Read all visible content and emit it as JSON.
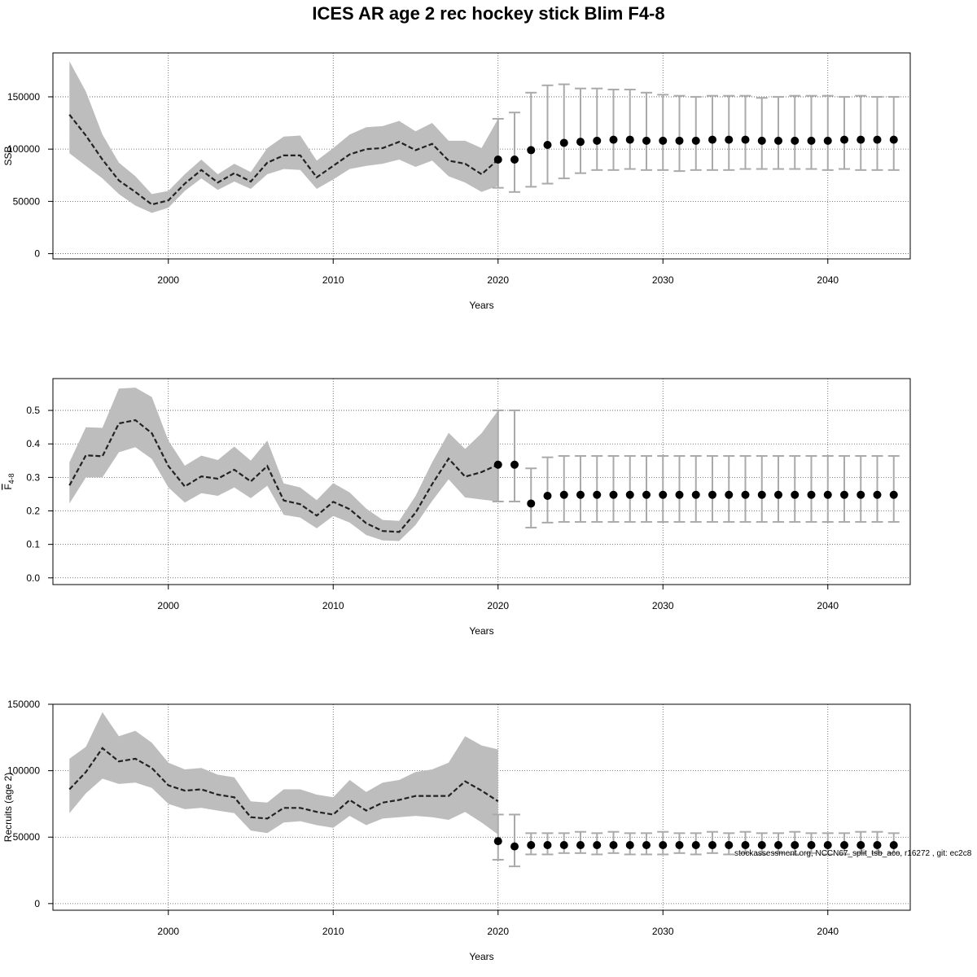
{
  "title": "ICES AR age 2 rec hockey stick Blim F4-8",
  "footnote": "stockassessment.org, NCCN67_split_tsb_aco, r16272 , git: ec2c8",
  "chart_data": [
    {
      "type": "line",
      "ylabel": "SSB",
      "xlabel": "Years",
      "xlim": [
        1993,
        2045
      ],
      "ylim": [
        -5000,
        192000
      ],
      "xticks": [
        2000,
        2010,
        2020,
        2030,
        2040
      ],
      "yticks": [
        0,
        50000,
        100000,
        150000
      ],
      "grid": true,
      "history": {
        "x": [
          1994,
          1995,
          1996,
          1997,
          1998,
          1999,
          2000,
          2001,
          2002,
          2003,
          2004,
          2005,
          2006,
          2007,
          2008,
          2009,
          2010,
          2011,
          2012,
          2013,
          2014,
          2015,
          2016,
          2017,
          2018,
          2019,
          2020
        ],
        "y": [
          133000,
          113000,
          90000,
          70000,
          59000,
          47000,
          51000,
          67000,
          80000,
          68000,
          77000,
          69000,
          87000,
          94000,
          94000,
          73000,
          84000,
          95000,
          100000,
          101000,
          107000,
          99000,
          105000,
          89000,
          86000,
          76000,
          90000
        ],
        "low": [
          96000,
          84000,
          72000,
          57000,
          46000,
          39000,
          44000,
          60000,
          72000,
          61000,
          69000,
          62000,
          76000,
          81000,
          80000,
          62000,
          71000,
          81000,
          84000,
          86000,
          90000,
          83000,
          89000,
          74000,
          68000,
          59000,
          65000
        ],
        "high": [
          184000,
          155000,
          114000,
          87000,
          74000,
          57000,
          60000,
          76000,
          90000,
          76000,
          86000,
          78000,
          101000,
          112000,
          113000,
          89000,
          101000,
          114000,
          121000,
          122000,
          127000,
          117000,
          125000,
          108000,
          108000,
          101000,
          129000
        ]
      },
      "forecast": {
        "x": [
          2020,
          2021,
          2022,
          2023,
          2024,
          2025,
          2026,
          2027,
          2028,
          2029,
          2030,
          2031,
          2032,
          2033,
          2034,
          2035,
          2036,
          2037,
          2038,
          2039,
          2040,
          2041,
          2042,
          2043,
          2044
        ],
        "y": [
          90000,
          90000,
          99000,
          104000,
          106000,
          107000,
          108000,
          109000,
          109000,
          108000,
          108000,
          108000,
          108000,
          109000,
          109000,
          109000,
          108000,
          108000,
          108000,
          108000,
          108000,
          109000,
          109000,
          109000,
          109000
        ],
        "low": [
          63000,
          59000,
          64000,
          67000,
          72000,
          77000,
          80000,
          80000,
          81000,
          80000,
          80000,
          79000,
          80000,
          80000,
          80000,
          81000,
          81000,
          81000,
          81000,
          81000,
          80000,
          81000,
          80000,
          80000,
          80000
        ],
        "high": [
          129000,
          135000,
          154000,
          161000,
          162000,
          158000,
          158000,
          157000,
          157000,
          154000,
          152000,
          151000,
          150000,
          151000,
          151000,
          151000,
          149000,
          150000,
          151000,
          151000,
          151000,
          150000,
          151000,
          150000,
          150000
        ]
      }
    },
    {
      "type": "line",
      "ylabel": "F",
      "ylabel_sub": "4-8",
      "xlabel": "Years",
      "xlim": [
        1993,
        2045
      ],
      "ylim": [
        -0.02,
        0.595
      ],
      "xticks": [
        2000,
        2010,
        2020,
        2030,
        2040
      ],
      "yticks": [
        0.0,
        0.1,
        0.2,
        0.3,
        0.4,
        0.5
      ],
      "ytick_labels": [
        "0.0",
        "0.1",
        "0.2",
        "0.3",
        "0.4",
        "0.5"
      ],
      "grid": true,
      "history": {
        "x": [
          1994,
          1995,
          1996,
          1997,
          1998,
          1999,
          2000,
          2001,
          2002,
          2003,
          2004,
          2005,
          2006,
          2007,
          2008,
          2009,
          2010,
          2011,
          2012,
          2013,
          2014,
          2015,
          2016,
          2017,
          2018,
          2019,
          2020
        ],
        "y": [
          0.276,
          0.366,
          0.363,
          0.461,
          0.471,
          0.432,
          0.334,
          0.273,
          0.303,
          0.296,
          0.323,
          0.288,
          0.334,
          0.231,
          0.22,
          0.186,
          0.227,
          0.205,
          0.163,
          0.14,
          0.137,
          0.195,
          0.28,
          0.356,
          0.302,
          0.316,
          0.338
        ],
        "low": [
          0.222,
          0.3,
          0.3,
          0.375,
          0.39,
          0.355,
          0.27,
          0.225,
          0.253,
          0.245,
          0.27,
          0.238,
          0.275,
          0.188,
          0.18,
          0.148,
          0.185,
          0.165,
          0.128,
          0.112,
          0.11,
          0.158,
          0.23,
          0.294,
          0.24,
          0.234,
          0.228
        ],
        "high": [
          0.345,
          0.45,
          0.448,
          0.565,
          0.568,
          0.54,
          0.41,
          0.335,
          0.365,
          0.352,
          0.392,
          0.35,
          0.41,
          0.282,
          0.27,
          0.232,
          0.283,
          0.255,
          0.207,
          0.173,
          0.17,
          0.245,
          0.345,
          0.433,
          0.385,
          0.432,
          0.5
        ]
      },
      "forecast": {
        "x": [
          2020,
          2021,
          2022,
          2023,
          2024,
          2025,
          2026,
          2027,
          2028,
          2029,
          2030,
          2031,
          2032,
          2033,
          2034,
          2035,
          2036,
          2037,
          2038,
          2039,
          2040,
          2041,
          2042,
          2043,
          2044
        ],
        "y": [
          0.338,
          0.338,
          0.222,
          0.245,
          0.248,
          0.248,
          0.248,
          0.248,
          0.248,
          0.248,
          0.248,
          0.248,
          0.248,
          0.248,
          0.248,
          0.248,
          0.248,
          0.248,
          0.248,
          0.248,
          0.248,
          0.248,
          0.248,
          0.248,
          0.248
        ],
        "low": [
          0.228,
          0.228,
          0.15,
          0.165,
          0.167,
          0.167,
          0.167,
          0.167,
          0.167,
          0.167,
          0.167,
          0.167,
          0.167,
          0.167,
          0.167,
          0.167,
          0.167,
          0.167,
          0.167,
          0.167,
          0.167,
          0.167,
          0.167,
          0.167,
          0.167
        ],
        "high": [
          0.5,
          0.5,
          0.327,
          0.36,
          0.364,
          0.364,
          0.364,
          0.364,
          0.364,
          0.364,
          0.364,
          0.364,
          0.364,
          0.364,
          0.364,
          0.364,
          0.364,
          0.364,
          0.364,
          0.364,
          0.364,
          0.364,
          0.364,
          0.364,
          0.364
        ]
      }
    },
    {
      "type": "line",
      "ylabel": "Recruits (age 2)",
      "xlabel": "Years",
      "xlim": [
        1993,
        2045
      ],
      "ylim": [
        -5000,
        150000
      ],
      "xticks": [
        2000,
        2010,
        2020,
        2030,
        2040
      ],
      "yticks": [
        0,
        50000,
        100000,
        150000
      ],
      "grid": true,
      "history": {
        "x": [
          1994,
          1995,
          1996,
          1997,
          1998,
          1999,
          2000,
          2001,
          2002,
          2003,
          2004,
          2005,
          2006,
          2007,
          2008,
          2009,
          2010,
          2011,
          2012,
          2013,
          2014,
          2015,
          2016,
          2017,
          2018,
          2019,
          2020
        ],
        "y": [
          86000,
          99000,
          117000,
          107000,
          109000,
          102000,
          89000,
          85000,
          86000,
          82000,
          80000,
          65000,
          64000,
          72000,
          72000,
          69000,
          67000,
          78000,
          70000,
          76000,
          78000,
          81000,
          81000,
          81000,
          92000,
          85000,
          77000
        ],
        "low": [
          68000,
          83000,
          94000,
          90000,
          91000,
          87000,
          75000,
          71000,
          72000,
          70000,
          68000,
          55000,
          53000,
          61000,
          62000,
          59000,
          57000,
          66000,
          59000,
          64000,
          65000,
          66000,
          65000,
          63000,
          69000,
          61000,
          52000
        ],
        "high": [
          109000,
          118000,
          144000,
          126000,
          130000,
          121000,
          106000,
          101000,
          102000,
          97000,
          95000,
          77000,
          76000,
          86000,
          86000,
          82000,
          80000,
          93000,
          84000,
          91000,
          93000,
          99000,
          101000,
          106000,
          126000,
          119000,
          116000
        ]
      },
      "forecast": {
        "x": [
          2020,
          2021,
          2022,
          2023,
          2024,
          2025,
          2026,
          2027,
          2028,
          2029,
          2030,
          2031,
          2032,
          2033,
          2034,
          2035,
          2036,
          2037,
          2038,
          2039,
          2040,
          2041,
          2042,
          2043,
          2044
        ],
        "y": [
          47000,
          43000,
          44000,
          44000,
          44000,
          44000,
          44000,
          44000,
          44000,
          44000,
          44000,
          44000,
          44000,
          44000,
          44000,
          44000,
          44000,
          44000,
          44000,
          44000,
          44000,
          44000,
          44000,
          44000,
          44000
        ],
        "low": [
          33000,
          28000,
          37000,
          37000,
          38000,
          38000,
          37000,
          38000,
          37000,
          37000,
          37000,
          38000,
          37000,
          38000,
          37000,
          38000,
          37000,
          38000,
          37000,
          38000,
          37000,
          37000,
          38000,
          38000,
          38000
        ],
        "high": [
          67000,
          67000,
          53000,
          53000,
          53000,
          54000,
          53000,
          54000,
          53000,
          53000,
          54000,
          53000,
          53000,
          54000,
          53000,
          54000,
          53000,
          53000,
          54000,
          53000,
          53000,
          53000,
          54000,
          54000,
          53000
        ]
      }
    }
  ]
}
